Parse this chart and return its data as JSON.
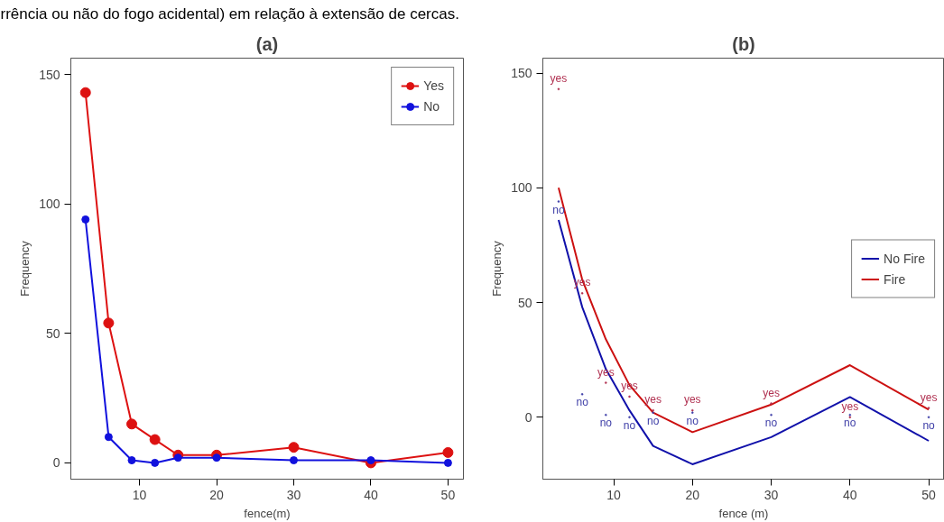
{
  "chart_data": [
    {
      "type": "line",
      "title": "(a)",
      "xlabel": "fence(m)",
      "ylabel": "Frequency",
      "annotations": [
        "rrência ou não do fogo acidental) em relação à extensão de cercas."
      ],
      "x": [
        3,
        6,
        9,
        12,
        15,
        20,
        30,
        40,
        50
      ],
      "series": [
        {
          "name": "Yes",
          "color": "#dd1111",
          "values": [
            143,
            54,
            15,
            9,
            3,
            3,
            6,
            0,
            4
          ]
        },
        {
          "name": "No",
          "color": "#1111dd",
          "values": [
            94,
            10,
            1,
            0,
            2,
            2,
            1,
            1,
            0
          ]
        }
      ],
      "xlim": [
        1.1,
        52
      ],
      "ylim": [
        -6.3,
        156.3
      ],
      "xticks": [
        10,
        20,
        30,
        40,
        50
      ],
      "yticks": [
        0,
        50,
        100,
        150
      ],
      "legend": "top right",
      "marker": "circle"
    },
    {
      "type": "line",
      "title": "(b)",
      "xlabel": "fence (m)",
      "ylabel": "Frequency",
      "x": [
        3,
        6,
        9,
        12,
        15,
        20,
        30,
        40,
        50
      ],
      "series": [
        {
          "name": "No Fire",
          "color": "#1111aa",
          "values": [
            86,
            48,
            21,
            3,
            -12.5,
            -20.5,
            -8.7,
            8.8,
            -10.3
          ]
        },
        {
          "name": "Fire",
          "color": "#cc1111",
          "values": [
            100,
            60,
            34,
            14,
            2,
            -6.5,
            5.5,
            22.7,
            3.3
          ]
        },
        {
          "type": "scatter",
          "color": "#b03050",
          "values": [
            143,
            54,
            15,
            9,
            3,
            3,
            6,
            0,
            4
          ],
          "value_labels": [
            "yes",
            "yes",
            "yes",
            "yes",
            "yes",
            "yes",
            "yes",
            "yes",
            "yes"
          ]
        },
        {
          "type": "scatter",
          "color": "#4040a8",
          "values": [
            94,
            10,
            1,
            0,
            2,
            2,
            1,
            1,
            0
          ],
          "value_labels": [
            "no",
            "no",
            "no",
            "no",
            "no",
            "no",
            "no",
            "no",
            "no"
          ]
        }
      ],
      "xlim": [
        1,
        52
      ],
      "ylim": [
        -27,
        156.5
      ],
      "xticks": [
        10,
        20,
        30,
        40,
        50
      ],
      "yticks": [
        0,
        50,
        100,
        150
      ],
      "legend": "right"
    }
  ]
}
